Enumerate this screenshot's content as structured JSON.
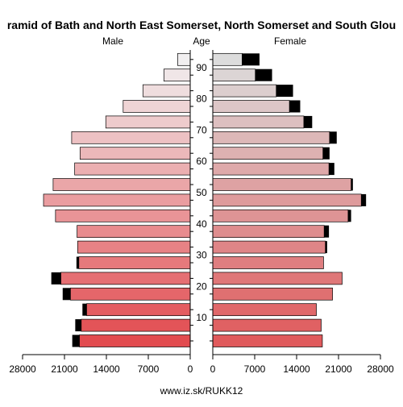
{
  "chart_data": {
    "type": "bar",
    "title": "ramid of Bath and North East Somerset, North Somerset and South Glou",
    "left_label": "Male",
    "center_label": "Age",
    "right_label": "Female",
    "footer": "www.iz.sk/RUKK12",
    "age_ticks": [
      "10",
      "20",
      "30",
      "40",
      "50",
      "60",
      "70",
      "80",
      "90"
    ],
    "x_ticks_left": [
      "28000",
      "21000",
      "14000",
      "7000",
      "0"
    ],
    "x_ticks_right": [
      "0",
      "7000",
      "14000",
      "21000",
      "28000"
    ],
    "xlim": [
      0,
      28000
    ],
    "age_groups": [
      "0-4",
      "5-9",
      "10-14",
      "15-19",
      "20-24",
      "25-29",
      "30-34",
      "35-39",
      "40-44",
      "45-49",
      "50-54",
      "55-59",
      "60-64",
      "65-69",
      "70-74",
      "75-79",
      "80-84",
      "85-89",
      "90+"
    ],
    "series": [
      {
        "name": "Male",
        "values": [
          18500,
          18200,
          17300,
          20000,
          21600,
          18600,
          18800,
          18900,
          22500,
          24500,
          22900,
          19300,
          18400,
          19800,
          14100,
          11200,
          7900,
          4400,
          2100
        ],
        "excess": [
          1200,
          1000,
          700,
          1300,
          1600,
          400,
          0,
          0,
          0,
          0,
          0,
          0,
          0,
          0,
          0,
          0,
          0,
          0,
          0
        ]
      },
      {
        "name": "Female",
        "values": [
          18300,
          18100,
          17300,
          20000,
          21600,
          18500,
          18800,
          18600,
          22600,
          24800,
          23100,
          19400,
          18400,
          19500,
          15200,
          12800,
          10600,
          7100,
          4900
        ],
        "excess": [
          0,
          0,
          0,
          0,
          0,
          0,
          300,
          800,
          500,
          800,
          300,
          900,
          1100,
          1200,
          1400,
          1800,
          2800,
          2800,
          2900
        ]
      }
    ]
  }
}
